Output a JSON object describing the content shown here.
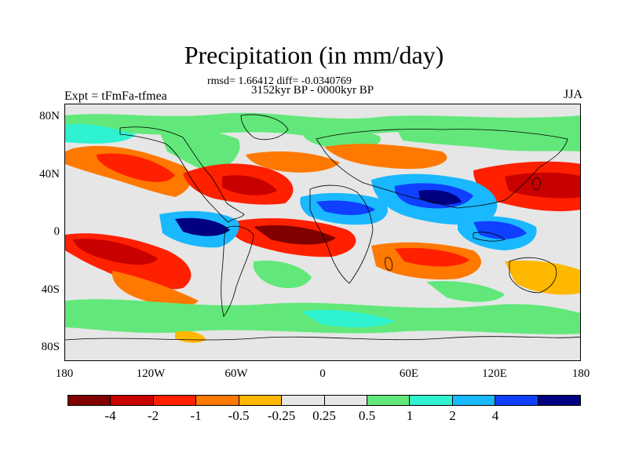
{
  "title": "Precipitation (in mm/day)",
  "stats": "rmsd= 1.66412 diff= -0.0340769",
  "period": "3152kyr BP - 0000kyr BP",
  "experiment": "Expt = tFmFa-tfmea",
  "season": "JJA",
  "lat_labels": [
    "80N",
    "40N",
    "0",
    "40S",
    "80S"
  ],
  "lon_labels": [
    "180",
    "120W",
    "60W",
    "0",
    "60E",
    "120E",
    "180"
  ],
  "colorbar": {
    "colors": [
      "#800000",
      "#c80000",
      "#ff2000",
      "#ff7800",
      "#ffb800",
      "#e6e6e6",
      "#e6e6e6",
      "#62e87a",
      "#2ef2d0",
      "#1ab8ff",
      "#1040ff",
      "#000080"
    ],
    "labels": [
      "-4",
      "-2",
      "-1",
      "-0.5",
      "-0.25",
      "0.25",
      "0.5",
      "1",
      "2",
      "4"
    ]
  },
  "palette": {
    "dry_extreme": "#800000",
    "dry_strong": "#c80000",
    "dry": "#ff2000",
    "dry_mild": "#ff7800",
    "dry_slight": "#ffb800",
    "neutral": "#e6e6e6",
    "wet_slight": "#62e87a",
    "wet_mild": "#2ef2d0",
    "wet": "#1ab8ff",
    "wet_strong": "#1040ff",
    "wet_extreme": "#000080"
  }
}
